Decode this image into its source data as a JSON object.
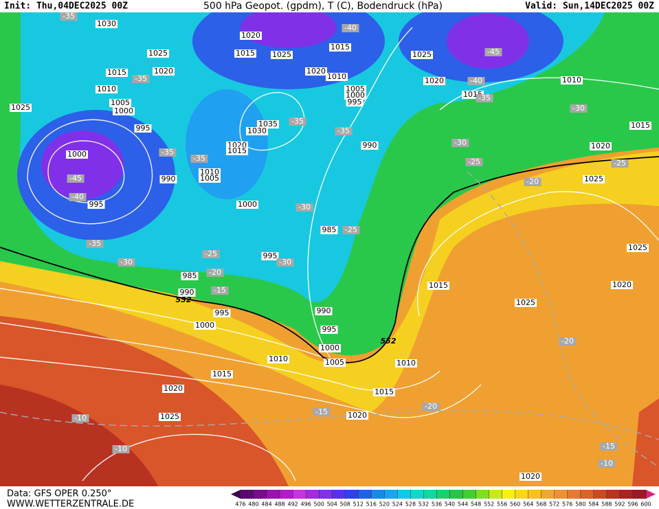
{
  "header": {
    "init": "Init: Thu,04DEC2025 00Z",
    "title": "500 hPa Geopot. (gpdm), T (C), Bodendruck (hPa)",
    "valid": "Valid: Sun,14DEC2025 00Z"
  },
  "map": {
    "pressure_labels": [
      "1030",
      "1025",
      "1015",
      "1020",
      "1010",
      "1005",
      "1000",
      "995",
      "1025",
      "1000",
      "995",
      "990",
      "1020",
      "1015",
      "1025",
      "1015",
      "1020",
      "1010",
      "1005",
      "1000",
      "995",
      "1035",
      "1030",
      "1020",
      "1015",
      "1010",
      "1005",
      "1000",
      "990",
      "985",
      "995",
      "985",
      "990",
      "995",
      "1000",
      "990",
      "995",
      "1000",
      "1005",
      "1010",
      "1015",
      "1020",
      "1025",
      "1010",
      "1015",
      "1020",
      "1015",
      "1025",
      "1020",
      "1025",
      "1025",
      "1020",
      "1015",
      "1010",
      "1025",
      "1020",
      "1015",
      "1020"
    ],
    "temperature_labels": [
      "-35",
      "-35",
      "-35",
      "-35",
      "-35",
      "-35",
      "-40",
      "-45",
      "-40",
      "-35",
      "-30",
      "-30",
      "-25",
      "-25",
      "-20",
      "-45",
      "-40",
      "-35",
      "-30",
      "-25",
      "-20",
      "-15",
      "-30",
      "-25",
      "-30",
      "-20",
      "-15",
      "-20",
      "-10",
      "-10",
      "-15",
      "-10"
    ],
    "height_labels": [
      "552",
      "552"
    ]
  },
  "colorbar": {
    "ticks": [
      476,
      480,
      484,
      488,
      492,
      496,
      500,
      504,
      508,
      512,
      516,
      520,
      524,
      528,
      532,
      536,
      540,
      544,
      548,
      552,
      556,
      560,
      564,
      568,
      572,
      576,
      580,
      584,
      588,
      592,
      596,
      600
    ],
    "colors": [
      "#5a0a6e",
      "#7a0a8e",
      "#9a10b0",
      "#b818cc",
      "#cc30e0",
      "#a828e8",
      "#8030f0",
      "#5a30f0",
      "#3040f0",
      "#2060f0",
      "#1888f0",
      "#10a8f0",
      "#10c8e8",
      "#10d8c8",
      "#10d8a0",
      "#18d070",
      "#20c848",
      "#40d030",
      "#80e020",
      "#c8e818",
      "#f8f010",
      "#f8d818",
      "#f8c020",
      "#f0a828",
      "#f09030",
      "#e87830",
      "#e06028",
      "#d04820",
      "#c03020",
      "#b02020",
      "#a01828"
    ]
  },
  "footer": {
    "data": "Data: GFS OPER 0.250°",
    "source": "WWW.WETTERZENTRALE.DE"
  }
}
